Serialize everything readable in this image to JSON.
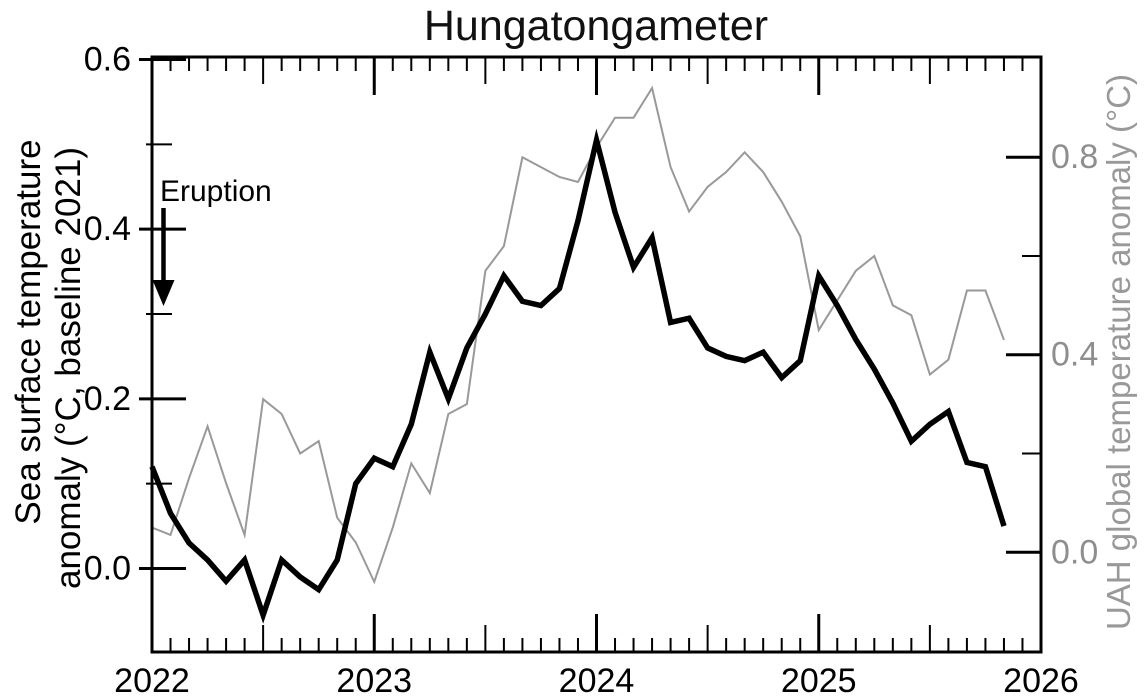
{
  "title": "Hungatongameter",
  "annotation": {
    "label": "Eruption"
  },
  "axes": {
    "x": {
      "tick_labels": [
        "2022",
        "2023",
        "2024",
        "2025",
        "2026"
      ],
      "range": [
        2022,
        2026
      ]
    },
    "left": {
      "label_line1": "Sea surface temperature",
      "label_line2": "anomaly (°C, baseline 2021)",
      "major_ticks": [
        0.0,
        0.2,
        0.4,
        0.6
      ],
      "minor_ticks": [
        0.1,
        0.3,
        0.5
      ],
      "tick_labels": [
        "0.0",
        "0.2",
        "0.4",
        "0.6"
      ],
      "range": [
        -0.0985,
        0.603
      ],
      "text_color": "#000000"
    },
    "right": {
      "label": "UAH global temperature anomaly (°C)",
      "major_ticks": [
        0.0,
        0.4,
        0.8
      ],
      "minor_ticks": [
        0.2,
        0.6
      ],
      "tick_labels": [
        "0.0",
        "0.4",
        "0.8"
      ],
      "range": [
        -0.202,
        1.003
      ],
      "text_color": "#8e8e8e"
    }
  },
  "chart_data": {
    "type": "line",
    "title": "Hungatongameter",
    "x_start": "2022-01",
    "x_step_months": 1,
    "x_range_years": [
      2022,
      2026
    ],
    "grid": false,
    "legend": "none",
    "series": [
      {
        "name": "Sea surface temperature anomaly (°C, baseline 2021)",
        "axis": "left",
        "color": "#000000",
        "stroke_width": 5.5,
        "ylim": [
          -0.0985,
          0.603
        ],
        "values": [
          0.12,
          0.065,
          0.03,
          0.01,
          -0.015,
          0.01,
          -0.055,
          0.01,
          -0.01,
          -0.025,
          0.01,
          0.1,
          0.13,
          0.12,
          0.17,
          0.255,
          0.2,
          0.26,
          0.3,
          0.345,
          0.315,
          0.31,
          0.33,
          0.41,
          0.505,
          0.42,
          0.355,
          0.39,
          0.29,
          0.295,
          0.26,
          0.25,
          0.245,
          0.255,
          0.225,
          0.245,
          0.345,
          0.31,
          0.27,
          0.235,
          0.195,
          0.15,
          0.17,
          0.185,
          0.125,
          0.12,
          0.05
        ]
      },
      {
        "name": "UAH global temperature anomaly (°C)",
        "axis": "right",
        "color": "#999999",
        "stroke_width": 2,
        "ylim": [
          -0.202,
          1.003
        ],
        "values": [
          0.05,
          0.035,
          0.15,
          0.255,
          0.14,
          0.035,
          0.31,
          0.28,
          0.2,
          0.225,
          0.07,
          0.02,
          -0.06,
          0.05,
          0.18,
          0.12,
          0.28,
          0.3,
          0.57,
          0.62,
          0.8,
          0.78,
          0.76,
          0.75,
          0.82,
          0.88,
          0.88,
          0.94,
          0.78,
          0.69,
          0.74,
          0.77,
          0.81,
          0.77,
          0.71,
          0.64,
          0.45,
          0.51,
          0.57,
          0.6,
          0.5,
          0.48,
          0.36,
          0.39,
          0.53,
          0.53,
          0.43
        ]
      }
    ],
    "annotations": [
      {
        "text": "Eruption",
        "x_year": 2022.04,
        "arrow": "down",
        "arrow_points_at_y_left": 0.31
      }
    ]
  }
}
